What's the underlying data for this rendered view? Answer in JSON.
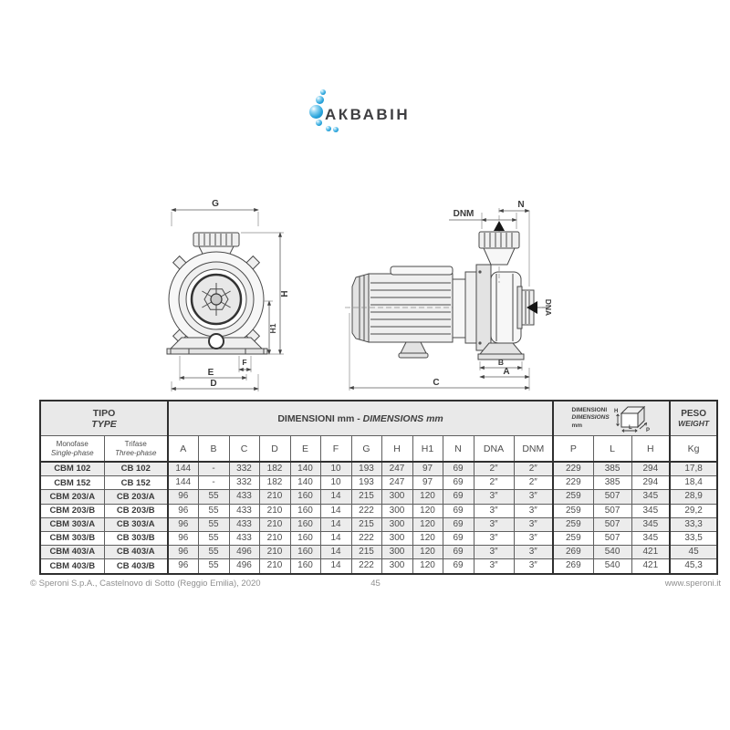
{
  "logo": {
    "text": "АКВАВІН",
    "bubble_color": "#2aa5dc",
    "text_color": "#3f3f42"
  },
  "drawings": {
    "front": {
      "G": "G",
      "H": "H",
      "H1": "H1",
      "F": "F",
      "E": "E",
      "D": "D"
    },
    "side": {
      "DNM": "DNM",
      "N": "N",
      "DNA": "DNA",
      "B": "B",
      "A": "A",
      "C": "C"
    }
  },
  "table": {
    "header": {
      "tipo": "TIPO",
      "type": "TYPE",
      "monofase": "Monofase",
      "single_phase": "Single-phase",
      "trifase": "Trifase",
      "three_phase": "Three-phase",
      "dimensions_group": "DIMENSIONI mm - ",
      "dimensions_group_italic": "DIMENSIONS mm",
      "package_dim_line1": "DIMENSIONI",
      "package_dim_line2": "DIMENSIONS",
      "package_dim_line3": "mm",
      "package_icon_labels": {
        "h": "H",
        "l": "L",
        "p": "P"
      },
      "peso": "PESO",
      "weight": "WEIGHT",
      "columns": [
        "A",
        "B",
        "C",
        "D",
        "E",
        "F",
        "G",
        "H",
        "H1",
        "N",
        "DNA",
        "DNM",
        "P",
        "L",
        "H",
        "Kg"
      ]
    },
    "rows": [
      [
        "CBM 102",
        "CB 102",
        "144",
        "-",
        "332",
        "182",
        "140",
        "10",
        "193",
        "247",
        "97",
        "69",
        "2″",
        "2″",
        "229",
        "385",
        "294",
        "17,8"
      ],
      [
        "CBM 152",
        "CB 152",
        "144",
        "-",
        "332",
        "182",
        "140",
        "10",
        "193",
        "247",
        "97",
        "69",
        "2″",
        "2″",
        "229",
        "385",
        "294",
        "18,4"
      ],
      [
        "CBM 203/A",
        "CB 203/A",
        "96",
        "55",
        "433",
        "210",
        "160",
        "14",
        "215",
        "300",
        "120",
        "69",
        "3″",
        "3″",
        "259",
        "507",
        "345",
        "28,9"
      ],
      [
        "CBM 203/B",
        "CB 203/B",
        "96",
        "55",
        "433",
        "210",
        "160",
        "14",
        "222",
        "300",
        "120",
        "69",
        "3″",
        "3″",
        "259",
        "507",
        "345",
        "29,2"
      ],
      [
        "CBM 303/A",
        "CB 303/A",
        "96",
        "55",
        "433",
        "210",
        "160",
        "14",
        "215",
        "300",
        "120",
        "69",
        "3″",
        "3″",
        "259",
        "507",
        "345",
        "33,3"
      ],
      [
        "CBM 303/B",
        "CB 303/B",
        "96",
        "55",
        "433",
        "210",
        "160",
        "14",
        "222",
        "300",
        "120",
        "69",
        "3″",
        "3″",
        "259",
        "507",
        "345",
        "33,5"
      ],
      [
        "CBM 403/A",
        "CB 403/A",
        "96",
        "55",
        "496",
        "210",
        "160",
        "14",
        "215",
        "300",
        "120",
        "69",
        "3″",
        "3″",
        "269",
        "540",
        "421",
        "45"
      ],
      [
        "CBM 403/B",
        "CB 403/B",
        "96",
        "55",
        "496",
        "210",
        "160",
        "14",
        "222",
        "300",
        "120",
        "69",
        "3″",
        "3″",
        "269",
        "540",
        "421",
        "45,3"
      ]
    ]
  },
  "footer": {
    "copyright": "© Speroni S.p.A., Castelnovo di Sotto (Reggio Emilia), 2020",
    "page_number": "45",
    "website": "www.speroni.it"
  }
}
